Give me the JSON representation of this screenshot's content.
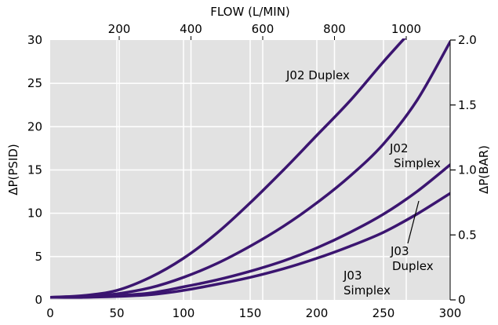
{
  "chart_data": {
    "type": "line",
    "title": "",
    "xlabel": "",
    "ylabel": "ΔP(PSID)",
    "xlim": [
      0,
      300
    ],
    "ylim": [
      0,
      30
    ],
    "x_ticks": [
      0,
      50,
      100,
      150,
      200,
      250,
      300
    ],
    "y_ticks": [
      0,
      5,
      10,
      15,
      20,
      25,
      30
    ],
    "top_axis": {
      "label": "FLOW (L/MIN)",
      "ticks": [
        200,
        400,
        600,
        800,
        1000
      ]
    },
    "right_axis": {
      "label": "ΔP(BAR)",
      "ticks": [
        "0",
        "0.5",
        "1.0",
        "1.5",
        "2.0"
      ],
      "tick_values": [
        0,
        0.5,
        1.0,
        1.5,
        2.0
      ]
    },
    "grid": true,
    "line_color": "#3b1570",
    "plot_bg": "#e2e2e2",
    "series": [
      {
        "name": "J02 Duplex",
        "x": [
          0,
          25,
          50,
          75,
          100,
          125,
          150,
          175,
          200,
          225,
          250,
          275,
          292
        ],
        "y": [
          0.3,
          0.5,
          1.1,
          2.6,
          4.8,
          7.7,
          11.2,
          15.0,
          19.0,
          23.0,
          27.5,
          31.8,
          35.0
        ]
      },
      {
        "name": "J02 Simplex",
        "x": [
          0,
          25,
          50,
          75,
          100,
          125,
          150,
          175,
          200,
          225,
          250,
          275,
          300
        ],
        "y": [
          0.3,
          0.4,
          0.7,
          1.4,
          2.6,
          4.2,
          6.2,
          8.5,
          11.2,
          14.3,
          18.0,
          23.0,
          29.8
        ]
      },
      {
        "name": "J03 Duplex",
        "x": [
          0,
          25,
          50,
          75,
          100,
          125,
          150,
          175,
          200,
          225,
          250,
          275,
          300
        ],
        "y": [
          0.3,
          0.3,
          0.5,
          0.8,
          1.5,
          2.3,
          3.3,
          4.5,
          6.0,
          7.8,
          9.9,
          12.5,
          15.6
        ]
      },
      {
        "name": "J03 Simplex",
        "x": [
          0,
          25,
          50,
          75,
          100,
          125,
          150,
          175,
          200,
          225,
          250,
          275,
          300
        ],
        "y": [
          0.3,
          0.3,
          0.4,
          0.6,
          1.1,
          1.8,
          2.6,
          3.6,
          4.8,
          6.2,
          7.8,
          9.9,
          12.3
        ]
      }
    ],
    "annotations": [
      {
        "lines": [
          "J02 Duplex"
        ],
        "series": "J02 Duplex"
      },
      {
        "lines": [
          "J02",
          "Simplex"
        ],
        "series": "J02 Simplex"
      },
      {
        "lines": [
          "J03",
          "Duplex"
        ],
        "series": "J03 Duplex"
      },
      {
        "lines": [
          "J03",
          "Simplex"
        ],
        "series": "J03 Simplex"
      }
    ]
  }
}
